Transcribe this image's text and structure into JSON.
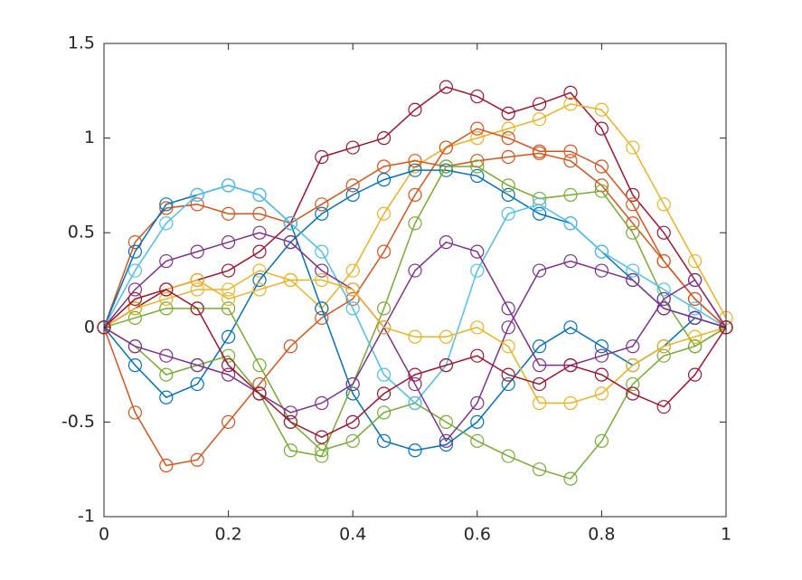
{
  "chart_data": {
    "type": "line",
    "marker": "circle",
    "x": [
      0,
      0.05,
      0.1,
      0.15,
      0.2,
      0.25,
      0.3,
      0.35,
      0.4,
      0.45,
      0.5,
      0.55,
      0.6,
      0.65,
      0.7,
      0.75,
      0.8,
      0.85,
      0.9,
      0.95,
      1
    ],
    "xlim": [
      0,
      1
    ],
    "xticks": [
      0,
      0.2,
      0.4,
      0.6,
      0.8,
      1
    ],
    "ylim": [
      -1,
      1.5
    ],
    "yticks": [
      -1,
      -0.5,
      0,
      0.5,
      1,
      1.5
    ],
    "series": [
      {
        "color": "#A2142F",
        "values": [
          0,
          0.1,
          0.2,
          0.25,
          0.3,
          0.4,
          0.55,
          0.9,
          0.95,
          1.0,
          1.15,
          1.27,
          1.22,
          1.13,
          1.18,
          1.24,
          1.05,
          0.7,
          0.5,
          0.25,
          0
        ]
      },
      {
        "color": "#EDB120",
        "values": [
          0,
          0.1,
          0.15,
          0.2,
          0.2,
          0.3,
          0.25,
          0.1,
          0.3,
          0.6,
          0.85,
          0.95,
          1.0,
          1.05,
          1.1,
          1.18,
          1.15,
          0.95,
          0.65,
          0.35,
          0.05
        ]
      },
      {
        "color": "#D95319",
        "values": [
          0,
          -0.45,
          -0.73,
          -0.7,
          -0.5,
          -0.3,
          -0.1,
          0.05,
          0.15,
          0.4,
          0.7,
          0.95,
          1.05,
          1.0,
          0.93,
          0.93,
          0.85,
          0.65,
          0.35,
          0.15,
          0
        ]
      },
      {
        "color": "#D95319",
        "values": [
          0,
          0.45,
          0.63,
          0.65,
          0.6,
          0.6,
          0.55,
          0.65,
          0.75,
          0.85,
          0.88,
          0.85,
          0.88,
          0.9,
          0.92,
          0.88,
          0.75,
          0.55,
          0.35,
          0.15,
          0
        ]
      },
      {
        "color": "#0072BD",
        "values": [
          0,
          0.4,
          0.65,
          0.7,
          0.75,
          0.7,
          0.55,
          0.1,
          -0.35,
          -0.6,
          -0.65,
          -0.62,
          -0.5,
          -0.3,
          -0.1,
          0.0,
          -0.1,
          -0.2,
          -0.1,
          0.05,
          0
        ]
      },
      {
        "color": "#0072BD",
        "values": [
          0,
          -0.2,
          -0.37,
          -0.3,
          -0.05,
          0.25,
          0.45,
          0.6,
          0.7,
          0.78,
          0.83,
          0.83,
          0.8,
          0.7,
          0.6,
          0.55,
          0.4,
          0.25,
          0.1,
          0.05,
          0
        ]
      },
      {
        "color": "#77AC30",
        "values": [
          0,
          0.05,
          0.1,
          0.1,
          0.1,
          -0.2,
          -0.5,
          -0.65,
          -0.6,
          -0.45,
          -0.4,
          -0.5,
          -0.6,
          -0.68,
          -0.75,
          -0.8,
          -0.6,
          -0.3,
          -0.15,
          -0.1,
          0
        ]
      },
      {
        "color": "#77AC30",
        "values": [
          0,
          -0.1,
          -0.25,
          -0.2,
          -0.15,
          -0.35,
          -0.65,
          -0.68,
          -0.3,
          0.1,
          0.55,
          0.85,
          0.85,
          0.75,
          0.68,
          0.7,
          0.72,
          0.5,
          0.15,
          -0.1,
          0
        ]
      },
      {
        "color": "#4DBEEE",
        "values": [
          0,
          0.3,
          0.55,
          0.7,
          0.75,
          0.7,
          0.55,
          0.4,
          0.1,
          -0.25,
          -0.4,
          -0.2,
          0.3,
          0.6,
          0.65,
          0.55,
          0.4,
          0.3,
          0.2,
          0.1,
          0
        ]
      },
      {
        "color": "#7E2F8E",
        "values": [
          0,
          -0.1,
          -0.15,
          -0.2,
          -0.25,
          -0.35,
          -0.45,
          -0.4,
          -0.3,
          0.0,
          0.3,
          0.45,
          0.4,
          0.1,
          -0.2,
          -0.2,
          -0.15,
          -0.1,
          0.15,
          0.25,
          0
        ]
      },
      {
        "color": "#7E2F8E",
        "values": [
          0,
          0.2,
          0.35,
          0.4,
          0.45,
          0.5,
          0.45,
          0.3,
          0.2,
          0.0,
          -0.3,
          -0.6,
          -0.4,
          0.0,
          0.3,
          0.35,
          0.3,
          0.25,
          0.1,
          0.05,
          0
        ]
      },
      {
        "color": "#EDB120",
        "values": [
          0,
          0.15,
          0.2,
          0.25,
          0.15,
          0.2,
          0.25,
          0.25,
          0.2,
          0.0,
          -0.05,
          -0.05,
          0.0,
          -0.1,
          -0.4,
          -0.4,
          -0.35,
          -0.2,
          -0.1,
          -0.05,
          0
        ]
      },
      {
        "color": "#A2142F",
        "values": [
          0,
          0.15,
          0.2,
          0.1,
          -0.2,
          -0.35,
          -0.5,
          -0.58,
          -0.5,
          -0.35,
          -0.25,
          -0.2,
          -0.15,
          -0.25,
          -0.3,
          -0.2,
          -0.25,
          -0.35,
          -0.42,
          -0.25,
          0
        ]
      }
    ]
  }
}
